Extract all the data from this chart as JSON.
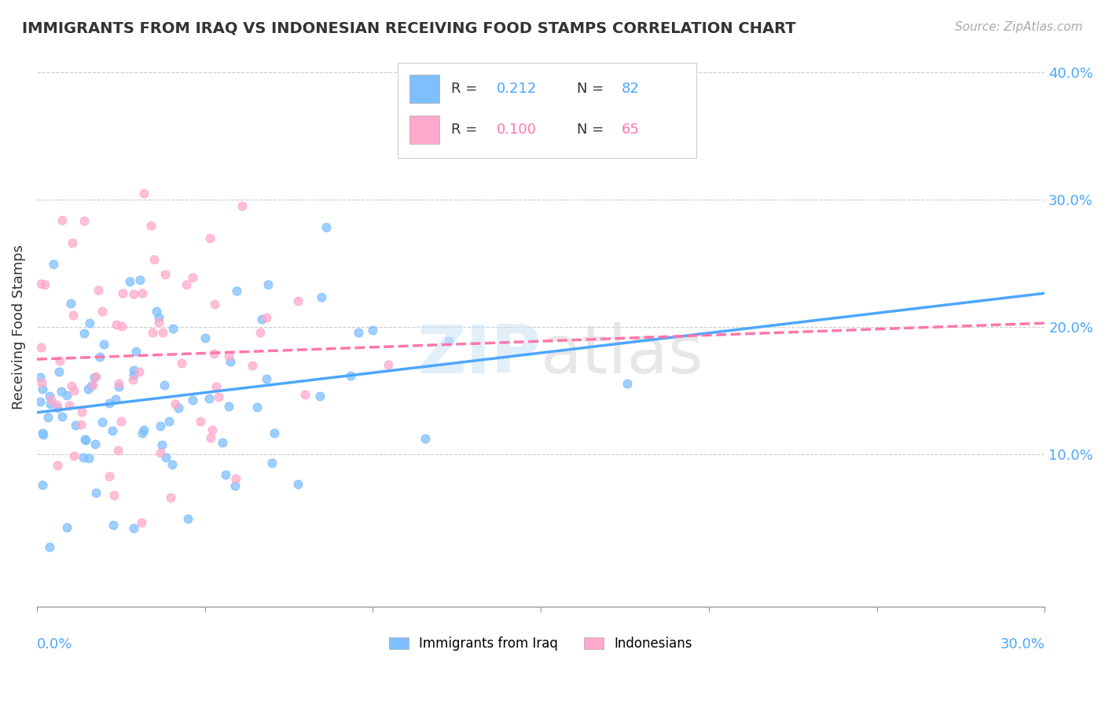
{
  "title": "IMMIGRANTS FROM IRAQ VS INDONESIAN RECEIVING FOOD STAMPS CORRELATION CHART",
  "source": "Source: ZipAtlas.com",
  "ylabel": "Receiving Food Stamps",
  "ylabel_right_ticks": [
    "10.0%",
    "20.0%",
    "30.0%",
    "40.0%"
  ],
  "ylabel_right_vals": [
    0.1,
    0.2,
    0.3,
    0.4
  ],
  "legend1_label": "Immigrants from Iraq",
  "legend2_label": "Indonesians",
  "R_iraq": 0.212,
  "N_iraq": 82,
  "R_indo": 0.1,
  "N_indo": 65,
  "iraq_color": "#7fbfff",
  "indo_color": "#ffaacc",
  "iraq_line_color": "#4da6ff",
  "indo_line_color": "#ff77aa",
  "xlim": [
    0.0,
    0.3
  ],
  "ylim": [
    -0.02,
    0.42
  ]
}
